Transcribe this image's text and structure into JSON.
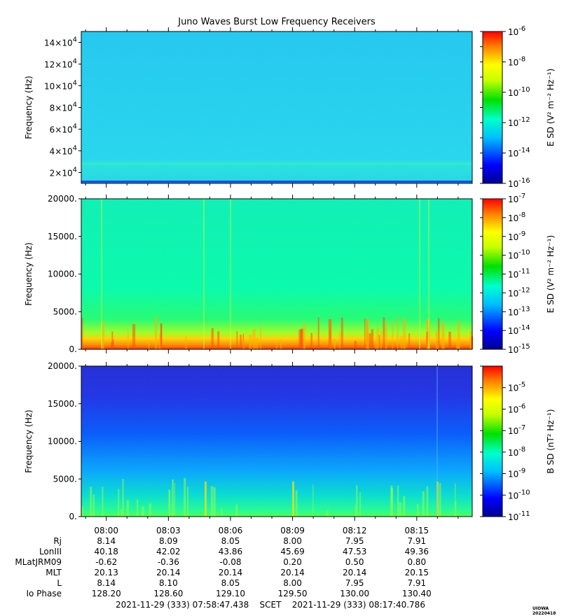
{
  "title": "Juno Waves Burst Low Frequency Receivers",
  "panels": [
    {
      "ylabel": "Frequency (Hz)",
      "ytick_labels": [
        "14×10^4",
        "12×10^4",
        "10×10^4",
        "8×10^4",
        "6×10^4",
        "4×10^4",
        "2×10^4"
      ],
      "colorbar_label": "E SD (V² m⁻² Hz⁻¹)",
      "colorbar_ticks": [
        "10^-6",
        "10^-8",
        "10^-10",
        "10^-12",
        "10^-14",
        "10^-16"
      ]
    },
    {
      "ylabel": "Frequency (Hz)",
      "ytick_labels": [
        "20000.",
        "15000.",
        "10000.",
        "5000.",
        "0."
      ],
      "colorbar_label": "E SD (V² m⁻² Hz⁻¹)",
      "colorbar_ticks": [
        "10^-7",
        "10^-8",
        "10^-9",
        "10^-10",
        "10^-11",
        "10^-12",
        "10^-13",
        "10^-14",
        "10^-15"
      ]
    },
    {
      "ylabel": "Frequency (Hz)",
      "ytick_labels": [
        "20000.",
        "15000.",
        "10000.",
        "5000.",
        "0."
      ],
      "colorbar_label": "B SD (nT² Hz⁻¹)",
      "colorbar_ticks": [
        "10^-5",
        "10^-6",
        "10^-7",
        "10^-8",
        "10^-9",
        "10^-10",
        "10^-11"
      ]
    }
  ],
  "chart_data": [
    {
      "type": "heatmap",
      "title": "Juno Waves Burst Low Frequency Receivers",
      "ylabel": "Frequency (Hz)",
      "zlabel": "E SD (V² m⁻² Hz⁻¹)",
      "ylim": [
        10000,
        150000
      ],
      "yticks": [
        20000,
        40000,
        60000,
        80000,
        100000,
        120000,
        140000
      ],
      "zlim": [
        1e-16,
        1e-06
      ],
      "zscale": "log",
      "xticks": [
        "08:00",
        "08:03",
        "08:06",
        "08:09",
        "08:12",
        "08:15"
      ]
    },
    {
      "type": "heatmap",
      "ylabel": "Frequency (Hz)",
      "zlabel": "E SD (V² m⁻² Hz⁻¹)",
      "ylim": [
        0,
        20000
      ],
      "yticks": [
        0,
        5000,
        10000,
        15000,
        20000
      ],
      "zlim": [
        1e-15,
        1e-07
      ],
      "zscale": "log",
      "xticks": [
        "08:00",
        "08:03",
        "08:06",
        "08:09",
        "08:12",
        "08:15"
      ]
    },
    {
      "type": "heatmap",
      "ylabel": "Frequency (Hz)",
      "zlabel": "B SD (nT² Hz⁻¹)",
      "ylim": [
        0,
        20000
      ],
      "yticks": [
        0,
        5000,
        10000,
        15000,
        20000
      ],
      "zlim": [
        1e-11,
        0.0001
      ],
      "zscale": "log",
      "xticks": [
        "08:00",
        "08:03",
        "08:06",
        "08:09",
        "08:12",
        "08:15"
      ]
    }
  ],
  "x_tick_labels": [
    "08:00",
    "08:03",
    "08:06",
    "08:09",
    "08:12",
    "08:15"
  ],
  "ephemeris": [
    {
      "label": "Rj",
      "values": [
        "8.14",
        "8.09",
        "8.05",
        "8.00",
        "7.95",
        "7.91"
      ]
    },
    {
      "label": "LonIII",
      "values": [
        "40.18",
        "42.02",
        "43.86",
        "45.69",
        "47.53",
        "49.36"
      ]
    },
    {
      "label": "MLatJRM09",
      "values": [
        "-0.62",
        "-0.36",
        "-0.08",
        "0.20",
        "0.50",
        "0.80"
      ]
    },
    {
      "label": "MLT",
      "values": [
        "20.13",
        "20.14",
        "20.14",
        "20.14",
        "20.14",
        "20.15"
      ]
    },
    {
      "label": "L",
      "values": [
        "8.14",
        "8.10",
        "8.05",
        "8.00",
        "7.95",
        "7.91"
      ]
    },
    {
      "label": "Io Phase",
      "values": [
        "128.20",
        "128.60",
        "129.10",
        "129.50",
        "130.00",
        "130.40"
      ]
    }
  ],
  "footer": {
    "start": "2021-11-29 (333) 07:58:47.438",
    "scet": "SCET",
    "end": "2021-11-29 (333) 08:17:40.786"
  },
  "credit": "UIOWA 20220418"
}
